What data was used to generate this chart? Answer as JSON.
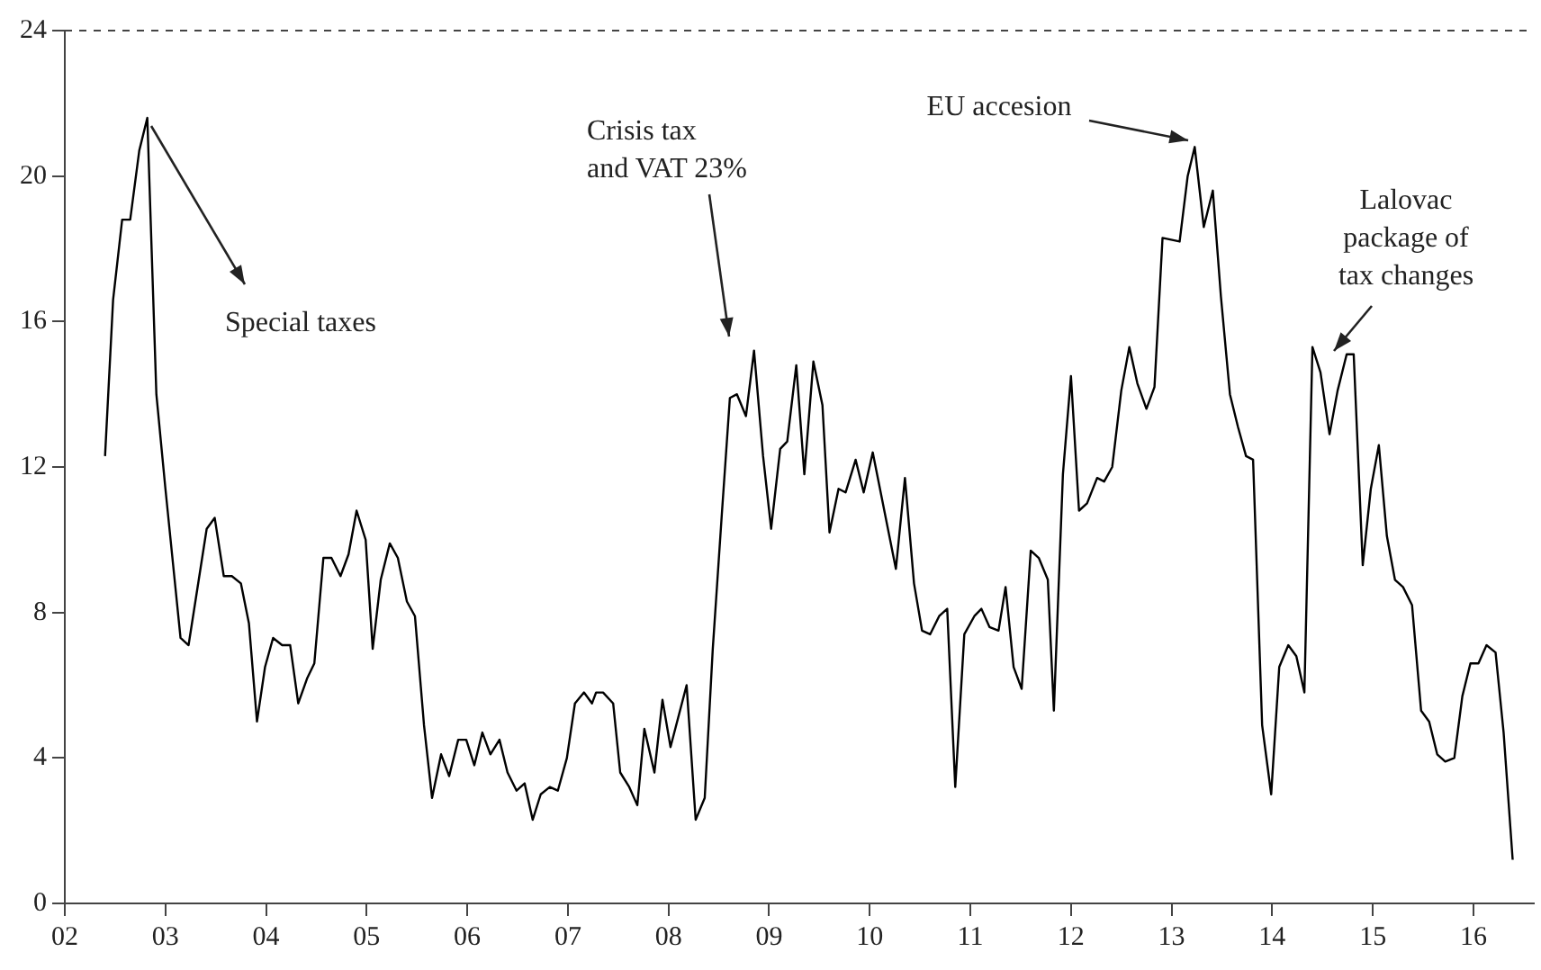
{
  "chart_data": {
    "type": "line",
    "x": [
      2002.4,
      2002.48,
      2002.57,
      2002.65,
      2002.74,
      2002.82,
      2002.91,
      2003.0,
      2003.15,
      2003.23,
      2003.41,
      2003.49,
      2003.58,
      2003.66,
      2003.75,
      2003.83,
      2003.91,
      2003.99,
      2004.07,
      2004.16,
      2004.24,
      2004.32,
      2004.41,
      2004.48,
      2004.57,
      2004.65,
      2004.74,
      2004.82,
      2004.9,
      2004.99,
      2005.06,
      2005.14,
      2005.23,
      2005.31,
      2005.4,
      2005.48,
      2005.57,
      2005.65,
      2005.74,
      2005.82,
      2005.91,
      2005.99,
      2006.07,
      2006.15,
      2006.23,
      2006.32,
      2006.4,
      2006.49,
      2006.57,
      2006.65,
      2006.73,
      2006.82,
      2006.9,
      2006.99,
      2007.07,
      2007.16,
      2007.24,
      2007.28,
      2007.35,
      2007.45,
      2007.52,
      2007.61,
      2007.69,
      2007.76,
      2007.86,
      2007.94,
      2008.02,
      2008.18,
      2008.27,
      2008.36,
      2008.44,
      2008.53,
      2008.61,
      2008.68,
      2008.77,
      2008.85,
      2008.94,
      2009.02,
      2009.11,
      2009.18,
      2009.27,
      2009.35,
      2009.44,
      2009.53,
      2009.6,
      2009.69,
      2009.76,
      2009.86,
      2009.94,
      2010.03,
      2010.26,
      2010.35,
      2010.44,
      2010.52,
      2010.6,
      2010.69,
      2010.77,
      2010.85,
      2010.94,
      2011.04,
      2011.11,
      2011.19,
      2011.28,
      2011.35,
      2011.43,
      2011.51,
      2011.6,
      2011.68,
      2011.77,
      2011.83,
      2011.92,
      2012.0,
      2012.08,
      2012.16,
      2012.26,
      2012.33,
      2012.41,
      2012.5,
      2012.58,
      2012.66,
      2012.75,
      2012.83,
      2012.91,
      2013.08,
      2013.16,
      2013.23,
      2013.32,
      2013.41,
      2013.49,
      2013.58,
      2013.66,
      2013.74,
      2013.81,
      2013.9,
      2013.99,
      2014.07,
      2014.16,
      2014.24,
      2014.32,
      2014.4,
      2014.48,
      2014.57,
      2014.65,
      2014.74,
      2014.81,
      2014.9,
      2014.98,
      2015.06,
      2015.14,
      2015.22,
      2015.3,
      2015.39,
      2015.48,
      2015.56,
      2015.64,
      2015.72,
      2015.81,
      2015.89,
      2015.97,
      2016.05,
      2016.13,
      2016.22,
      2016.3,
      2016.39
    ],
    "series": [
      {
        "color": "#000000",
        "values": [
          12.3,
          16.6,
          18.8,
          18.8,
          20.7,
          21.6,
          14.0,
          11.4,
          7.3,
          7.1,
          10.3,
          10.6,
          9.0,
          9.0,
          8.8,
          7.7,
          5.0,
          6.5,
          7.3,
          7.1,
          7.1,
          5.5,
          6.2,
          6.6,
          9.5,
          9.5,
          9.0,
          9.6,
          10.8,
          10.0,
          7.0,
          8.9,
          9.9,
          9.5,
          8.3,
          7.9,
          4.9,
          2.9,
          4.1,
          3.5,
          4.5,
          4.5,
          3.8,
          4.7,
          4.1,
          4.5,
          3.6,
          3.1,
          3.3,
          2.3,
          3.0,
          3.2,
          3.1,
          4.0,
          5.5,
          5.8,
          5.5,
          5.8,
          5.8,
          5.5,
          3.6,
          3.2,
          2.7,
          4.8,
          3.6,
          5.6,
          4.3,
          6.0,
          2.3,
          2.9,
          7.0,
          10.7,
          13.9,
          14.0,
          13.4,
          15.2,
          12.3,
          10.3,
          12.5,
          12.7,
          14.8,
          11.8,
          14.9,
          13.7,
          10.2,
          11.4,
          11.3,
          12.2,
          11.3,
          12.4,
          9.2,
          11.7,
          8.8,
          7.5,
          7.4,
          7.9,
          8.1,
          3.2,
          7.4,
          7.9,
          8.1,
          7.6,
          7.5,
          8.7,
          6.5,
          5.9,
          9.7,
          9.5,
          8.9,
          5.3,
          11.8,
          14.5,
          10.8,
          11.0,
          11.7,
          11.6,
          12.0,
          14.1,
          15.3,
          14.3,
          13.6,
          14.2,
          18.3,
          18.2,
          20.0,
          20.8,
          18.6,
          19.6,
          16.7,
          14.0,
          13.1,
          12.3,
          12.2,
          4.9,
          3.0,
          6.5,
          7.1,
          6.8,
          5.8,
          15.3,
          14.6,
          12.9,
          14.1,
          15.1,
          15.1,
          9.3,
          11.4,
          12.6,
          10.1,
          8.9,
          8.7,
          8.2,
          5.3,
          5.0,
          4.1,
          3.9,
          4.0,
          5.7,
          6.6,
          6.6,
          7.1,
          6.9,
          4.7,
          1.2
        ]
      }
    ],
    "xlim": [
      2002,
      2016.6
    ],
    "xticks": [
      {
        "value": 2002,
        "label": "02"
      },
      {
        "value": 2003,
        "label": "03"
      },
      {
        "value": 2004,
        "label": "04"
      },
      {
        "value": 2005,
        "label": "05"
      },
      {
        "value": 2006,
        "label": "06"
      },
      {
        "value": 2007,
        "label": "07"
      },
      {
        "value": 2008,
        "label": "08"
      },
      {
        "value": 2009,
        "label": "09"
      },
      {
        "value": 2010,
        "label": "10"
      },
      {
        "value": 2011,
        "label": "11"
      },
      {
        "value": 2012,
        "label": "12"
      },
      {
        "value": 2013,
        "label": "13"
      },
      {
        "value": 2014,
        "label": "14"
      },
      {
        "value": 2015,
        "label": "15"
      },
      {
        "value": 2016,
        "label": "16"
      }
    ],
    "ylim": [
      0,
      24
    ],
    "yticks": [
      0,
      4,
      8,
      12,
      16,
      20,
      24
    ],
    "marker": "none",
    "line_style": "solid",
    "annotations": [
      "Special taxes",
      "Crisis tax\nand VAT 23%",
      "EU accesion",
      "Lalovac\npackage of\ntax changes"
    ]
  }
}
